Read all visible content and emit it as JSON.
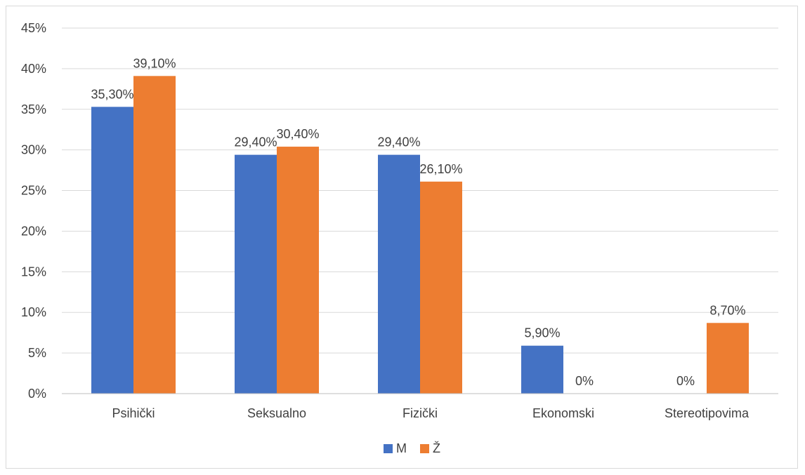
{
  "chart_data": {
    "type": "bar",
    "categories": [
      "Psihički",
      "Seksualno",
      "Fizički",
      "Ekonomski",
      "Stereotipovima"
    ],
    "series": [
      {
        "name": "M",
        "values": [
          35.3,
          29.4,
          29.4,
          5.9,
          0
        ],
        "labels": [
          "35,30%",
          "29,40%",
          "29,40%",
          "5,90%",
          "0%"
        ],
        "color": "#4472C4"
      },
      {
        "name": "Ž",
        "values": [
          39.1,
          30.4,
          26.1,
          0,
          8.7
        ],
        "labels": [
          "39,10%",
          "30,40%",
          "26,10%",
          "0%",
          "8,70%"
        ],
        "color": "#ED7D31"
      }
    ],
    "yticks": [
      "0%",
      "5%",
      "10%",
      "15%",
      "20%",
      "25%",
      "30%",
      "35%",
      "40%",
      "45%"
    ],
    "ylim": [
      0,
      45
    ],
    "grid": true,
    "legend_position": "bottom",
    "gridline_color": "#d9d9d9",
    "axis_color": "#bfbfbf"
  }
}
